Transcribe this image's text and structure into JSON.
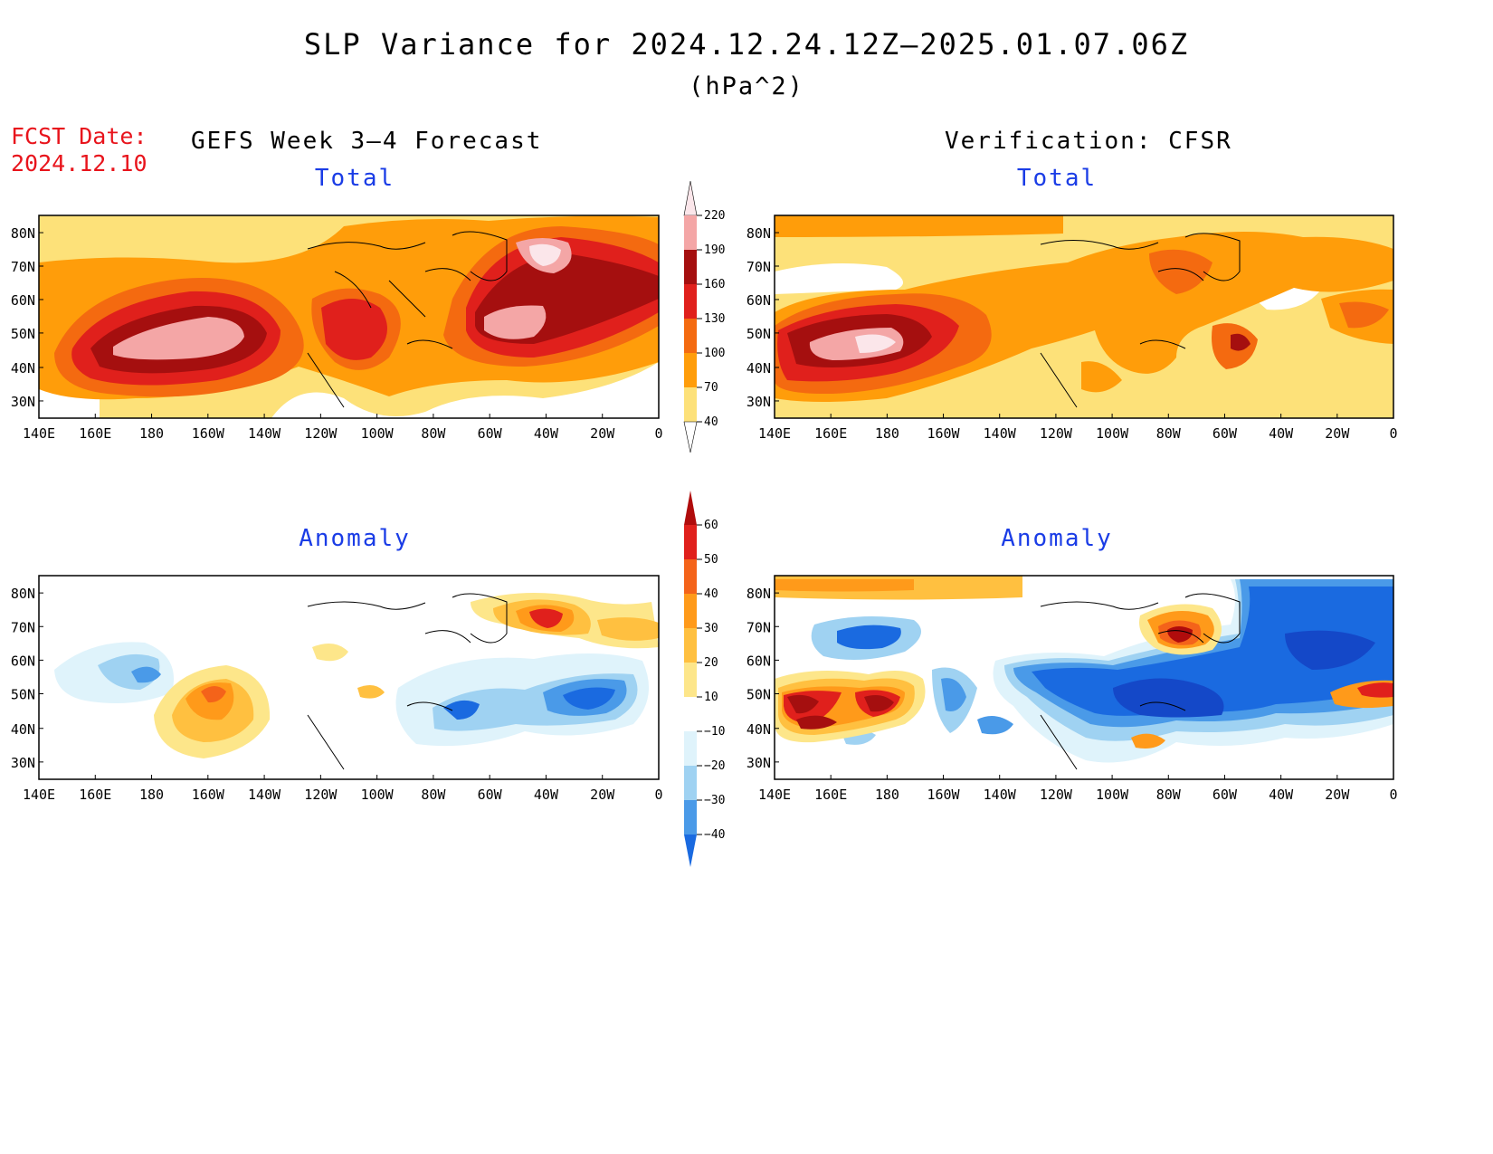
{
  "header": {
    "title": "SLP Variance for 2024.12.24.12Z–2025.01.07.06Z",
    "units": "(hPa^2)",
    "fcst_label": "FCST Date:",
    "fcst_date": "2024.12.10",
    "left_column": "GEFS Week 3–4 Forecast",
    "right_column": "Verification: CFSR"
  },
  "panels": {
    "forecast_total": "Total",
    "verification_total": "Total",
    "forecast_anomaly": "Anomaly",
    "verification_anomaly": "Anomaly"
  },
  "axes": {
    "lat_labels": [
      "80N",
      "70N",
      "60N",
      "50N",
      "40N",
      "30N"
    ],
    "lon_labels": [
      "140E",
      "160E",
      "180",
      "160W",
      "140W",
      "120W",
      "100W",
      "80W",
      "60W",
      "40W",
      "20W",
      "0"
    ]
  },
  "colorbars": {
    "total": {
      "labels": [
        "220",
        "190",
        "160",
        "130",
        "100",
        "70",
        "40"
      ],
      "colors": [
        "#fbe6ea",
        "#f4a6a6",
        "#a50f0f",
        "#e0201c",
        "#f46a10",
        "#ff9d0a",
        "#ffc93a",
        "#fde179"
      ]
    },
    "anomaly": {
      "labels": [
        "60",
        "50",
        "40",
        "30",
        "20",
        "10",
        "−10",
        "−20",
        "−30",
        "−40"
      ],
      "colors": [
        "#b00c0c",
        "#e0201c",
        "#f4631a",
        "#ff9a1a",
        "#ffc040",
        "#fde68a",
        "#ffffff",
        "#dff3fb",
        "#9fd2f2",
        "#4a9ae8",
        "#1a6ae0",
        "#1448c8"
      ]
    }
  },
  "colors": {
    "title_text": "#000000",
    "fcst_text": "#e8141c",
    "panel_title": "#1a3ce6"
  }
}
